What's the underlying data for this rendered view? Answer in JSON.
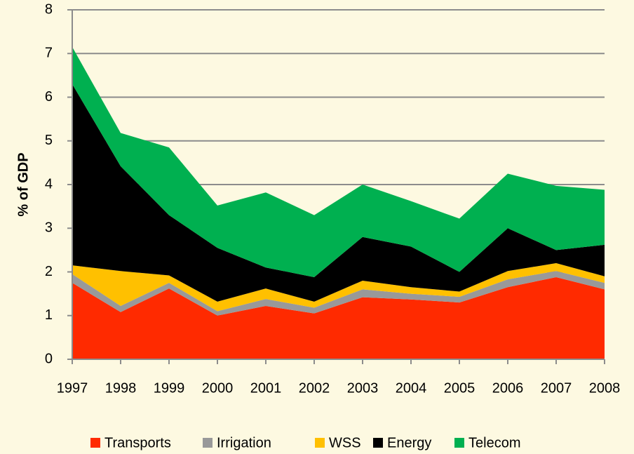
{
  "chart_data": {
    "type": "stacked_area",
    "ylabel": "% of GDP",
    "categories": [
      "1997",
      "1998",
      "1999",
      "2000",
      "2001",
      "2002",
      "2003",
      "2004",
      "2005",
      "2006",
      "2007",
      "2008"
    ],
    "series": [
      {
        "name": "Transports",
        "color": "#ff2a00",
        "values": [
          1.75,
          1.08,
          1.62,
          1.0,
          1.22,
          1.05,
          1.42,
          1.37,
          1.3,
          1.65,
          1.88,
          1.6
        ]
      },
      {
        "name": "Irrigation",
        "color": "#999999",
        "values": [
          0.2,
          0.14,
          0.13,
          0.1,
          0.16,
          0.13,
          0.18,
          0.13,
          0.13,
          0.18,
          0.14,
          0.15
        ]
      },
      {
        "name": "WSS",
        "color": "#ffc000",
        "values": [
          0.2,
          0.8,
          0.17,
          0.22,
          0.24,
          0.14,
          0.2,
          0.15,
          0.12,
          0.19,
          0.18,
          0.15
        ]
      },
      {
        "name": "Energy",
        "color": "#000000",
        "values": [
          4.15,
          2.4,
          1.38,
          1.23,
          0.48,
          0.56,
          1.0,
          0.93,
          0.45,
          0.98,
          0.3,
          0.72
        ]
      },
      {
        "name": "Telecom",
        "color": "#00b050",
        "values": [
          0.85,
          0.76,
          1.55,
          0.97,
          1.72,
          1.42,
          1.2,
          1.04,
          1.22,
          1.25,
          1.47,
          1.26
        ]
      }
    ],
    "ylim": [
      0,
      8
    ],
    "yticks": [
      0,
      1,
      2,
      3,
      4,
      5,
      6,
      7,
      8
    ],
    "grid": true,
    "legend": "bottom"
  }
}
